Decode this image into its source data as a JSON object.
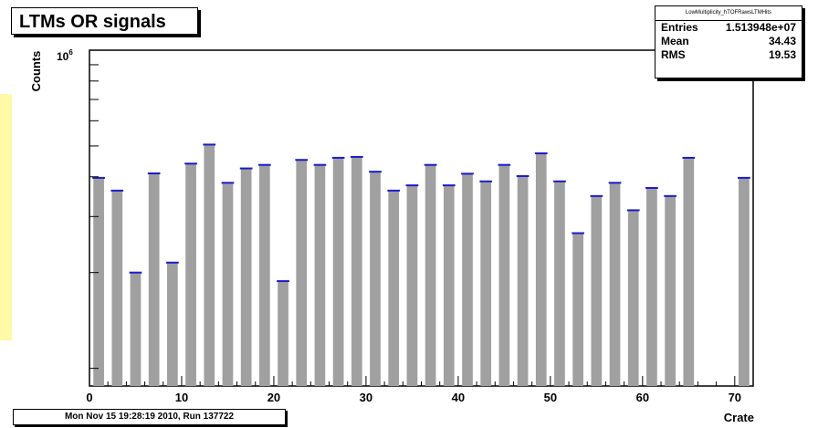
{
  "title": "LTMs OR signals",
  "footer": "Mon Nov 15 19:28:19 2010, Run 137722",
  "stats": {
    "name": "LowMultiplicity_hTOFRawsLTMHits",
    "rows": [
      {
        "label": "Entries",
        "value": "1.513948e+07"
      },
      {
        "label": "Mean",
        "value": "34.43"
      },
      {
        "label": "RMS",
        "value": "19.53"
      }
    ]
  },
  "colors": {
    "bar": "#a0a0a0",
    "error_tick": "#1a1acc",
    "highlight": "#fff9a8"
  },
  "chart_data": {
    "type": "bar",
    "xlabel": "Crate",
    "ylabel": "Counts",
    "x_scale": "linear",
    "y_scale": "log",
    "xlim": [
      0,
      72
    ],
    "x_ticks": [
      "0",
      "10",
      "20",
      "30",
      "40",
      "50",
      "60",
      "70"
    ],
    "y_tick_label": "10",
    "y_tick_exponent": "6",
    "y_tick_value": 1000000,
    "ylim": [
      88000,
      1000000
    ],
    "bin_width": 2,
    "bars": [
      {
        "x": 2,
        "value": 397000
      },
      {
        "x": 4,
        "value": 362000
      },
      {
        "x": 6,
        "value": 200000
      },
      {
        "x": 8,
        "value": 410000
      },
      {
        "x": 10,
        "value": 215000
      },
      {
        "x": 12,
        "value": 440000
      },
      {
        "x": 14,
        "value": 505000
      },
      {
        "x": 16,
        "value": 383000
      },
      {
        "x": 18,
        "value": 425000
      },
      {
        "x": 20,
        "value": 436000
      },
      {
        "x": 22,
        "value": 188000
      },
      {
        "x": 24,
        "value": 452000
      },
      {
        "x": 26,
        "value": 436000
      },
      {
        "x": 28,
        "value": 459000
      },
      {
        "x": 30,
        "value": 462000
      },
      {
        "x": 32,
        "value": 415000
      },
      {
        "x": 34,
        "value": 362000
      },
      {
        "x": 36,
        "value": 376000
      },
      {
        "x": 38,
        "value": 436000
      },
      {
        "x": 40,
        "value": 376000
      },
      {
        "x": 42,
        "value": 409000
      },
      {
        "x": 44,
        "value": 387000
      },
      {
        "x": 46,
        "value": 436000
      },
      {
        "x": 48,
        "value": 402000
      },
      {
        "x": 50,
        "value": 474000
      },
      {
        "x": 52,
        "value": 387000
      },
      {
        "x": 54,
        "value": 266000
      },
      {
        "x": 56,
        "value": 348000
      },
      {
        "x": 58,
        "value": 383000
      },
      {
        "x": 60,
        "value": 314000
      },
      {
        "x": 62,
        "value": 369000
      },
      {
        "x": 64,
        "value": 348000
      },
      {
        "x": 66,
        "value": 459000
      },
      {
        "x": 72,
        "value": 397000
      }
    ]
  }
}
